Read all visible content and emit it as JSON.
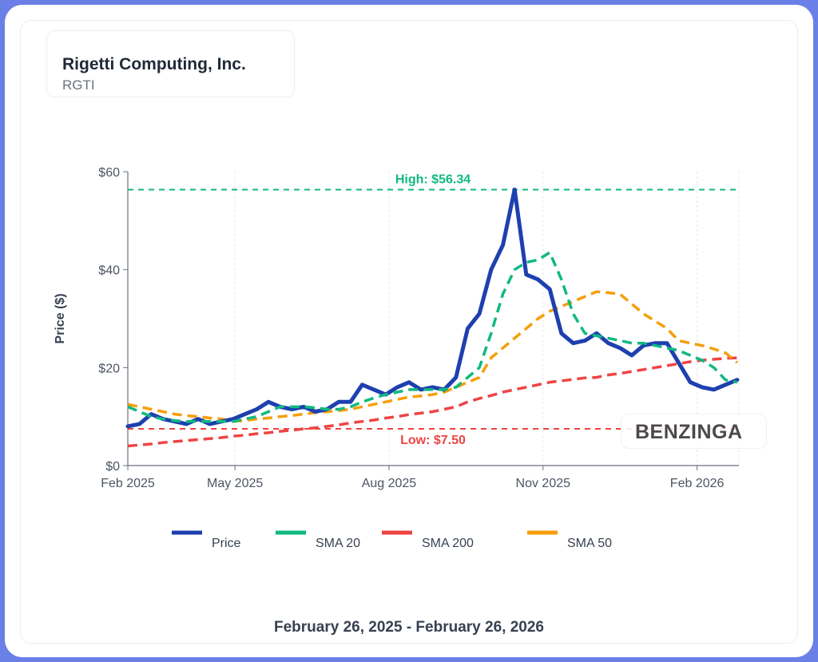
{
  "header": {
    "title": "Rigetti Computing, Inc.",
    "ticker": "RGTI"
  },
  "footer": {
    "date_range": "February 26, 2025 - February 26, 2026"
  },
  "watermark": "BENZINGA",
  "chart_data": {
    "type": "line",
    "ylabel": "Price ($)",
    "xlabel": "",
    "ylim": [
      0,
      60
    ],
    "y_ticks": [
      {
        "value": 0,
        "label": "$0"
      },
      {
        "value": 20,
        "label": "$20"
      },
      {
        "value": 40,
        "label": "$40"
      },
      {
        "value": 60,
        "label": "$60"
      }
    ],
    "x_range": [
      "2025-02-26",
      "2026-02-26"
    ],
    "x_ticks": [
      {
        "date": "2025-02-26",
        "label": "Feb 2025"
      },
      {
        "date": "2025-05-01",
        "label": "May 2025"
      },
      {
        "date": "2025-08-01",
        "label": "Aug 2025"
      },
      {
        "date": "2025-11-01",
        "label": "Nov 2025"
      },
      {
        "date": "2026-02-01",
        "label": "Feb 2026"
      }
    ],
    "grid": true,
    "legend_placement": "bottom",
    "annotations": [
      {
        "label": "High: $56.34",
        "value": 56.34,
        "color": "#10b981"
      },
      {
        "label": "Low: $7.50",
        "value": 7.5,
        "color": "#ef4444"
      }
    ],
    "x": [
      "2025-02-26",
      "2025-03-05",
      "2025-03-12",
      "2025-03-19",
      "2025-03-26",
      "2025-04-02",
      "2025-04-09",
      "2025-04-16",
      "2025-04-23",
      "2025-04-30",
      "2025-05-07",
      "2025-05-14",
      "2025-05-21",
      "2025-05-28",
      "2025-06-04",
      "2025-06-11",
      "2025-06-18",
      "2025-06-25",
      "2025-07-02",
      "2025-07-09",
      "2025-07-16",
      "2025-07-23",
      "2025-07-30",
      "2025-08-06",
      "2025-08-13",
      "2025-08-20",
      "2025-08-27",
      "2025-09-03",
      "2025-09-10",
      "2025-09-17",
      "2025-09-24",
      "2025-10-01",
      "2025-10-08",
      "2025-10-15",
      "2025-10-22",
      "2025-10-29",
      "2025-11-05",
      "2025-11-12",
      "2025-11-19",
      "2025-11-26",
      "2025-12-03",
      "2025-12-10",
      "2025-12-17",
      "2025-12-24",
      "2025-12-31",
      "2026-01-07",
      "2026-01-14",
      "2026-01-21",
      "2026-01-28",
      "2026-02-04",
      "2026-02-11",
      "2026-02-18",
      "2026-02-25"
    ],
    "series": [
      {
        "name": "Price",
        "color": "#1e40af",
        "dashed": false,
        "values": [
          8,
          8.5,
          10.5,
          9.5,
          9,
          8.5,
          9.5,
          8.5,
          9,
          9.5,
          10.5,
          11.5,
          13,
          12,
          11.5,
          12,
          11,
          11.5,
          13,
          13,
          16.5,
          15.5,
          14.5,
          16,
          17,
          15.5,
          16,
          15.5,
          18,
          28,
          31,
          40,
          45,
          56.34,
          39,
          38,
          36,
          27,
          25,
          25.5,
          27,
          25,
          24,
          22.5,
          24.5,
          25,
          25,
          21,
          17,
          16,
          15.5,
          16.5,
          17.5
        ]
      },
      {
        "name": "SMA 20",
        "color": "#10b981",
        "dashed": true,
        "values": [
          12,
          11,
          10,
          9.5,
          9.2,
          9,
          9,
          9,
          9,
          9,
          9.5,
          10,
          11,
          12,
          12,
          12,
          11.8,
          11.5,
          11.5,
          12,
          13,
          13.8,
          14.5,
          15,
          15.5,
          15.5,
          15.5,
          15.5,
          16,
          18,
          20,
          27,
          35,
          40,
          41.5,
          42,
          43.5,
          38,
          31,
          27,
          26.5,
          26,
          25.5,
          25,
          25,
          24.5,
          24,
          23.5,
          22.5,
          21.5,
          20,
          17.5,
          17
        ]
      },
      {
        "name": "SMA 200",
        "color": "#ef4444",
        "dashed": true,
        "values": [
          4,
          4.2,
          4.4,
          4.7,
          4.9,
          5.1,
          5.3,
          5.5,
          5.7,
          6,
          6.2,
          6.5,
          6.7,
          7,
          7.2,
          7.5,
          7.7,
          8,
          8.3,
          8.7,
          9,
          9.3,
          9.7,
          10,
          10.4,
          10.7,
          11,
          11.5,
          12,
          13,
          13.7,
          14.3,
          15,
          15.5,
          16,
          16.5,
          17,
          17.3,
          17.6,
          17.9,
          18,
          18.5,
          18.8,
          19.2,
          19.6,
          20,
          20.4,
          20.8,
          21.2,
          21.5,
          21.7,
          21.9,
          22
        ]
      },
      {
        "name": "SMA 50",
        "color": "#f59e0b",
        "dashed": true,
        "values": [
          12.5,
          12,
          11.5,
          11,
          10.5,
          10.2,
          10,
          9.7,
          9.5,
          9,
          9.2,
          9.5,
          9.7,
          10,
          10.2,
          10.5,
          10.8,
          11,
          11.2,
          11.5,
          12,
          12.5,
          13,
          13.5,
          14,
          14.2,
          14.5,
          15,
          16,
          17,
          18,
          22,
          24,
          26,
          28,
          30,
          31.5,
          32.5,
          33.5,
          34.5,
          35.5,
          35.3,
          35,
          33,
          31,
          29.5,
          28,
          25.5,
          25,
          24.5,
          23.8,
          23,
          21
        ]
      }
    ]
  }
}
